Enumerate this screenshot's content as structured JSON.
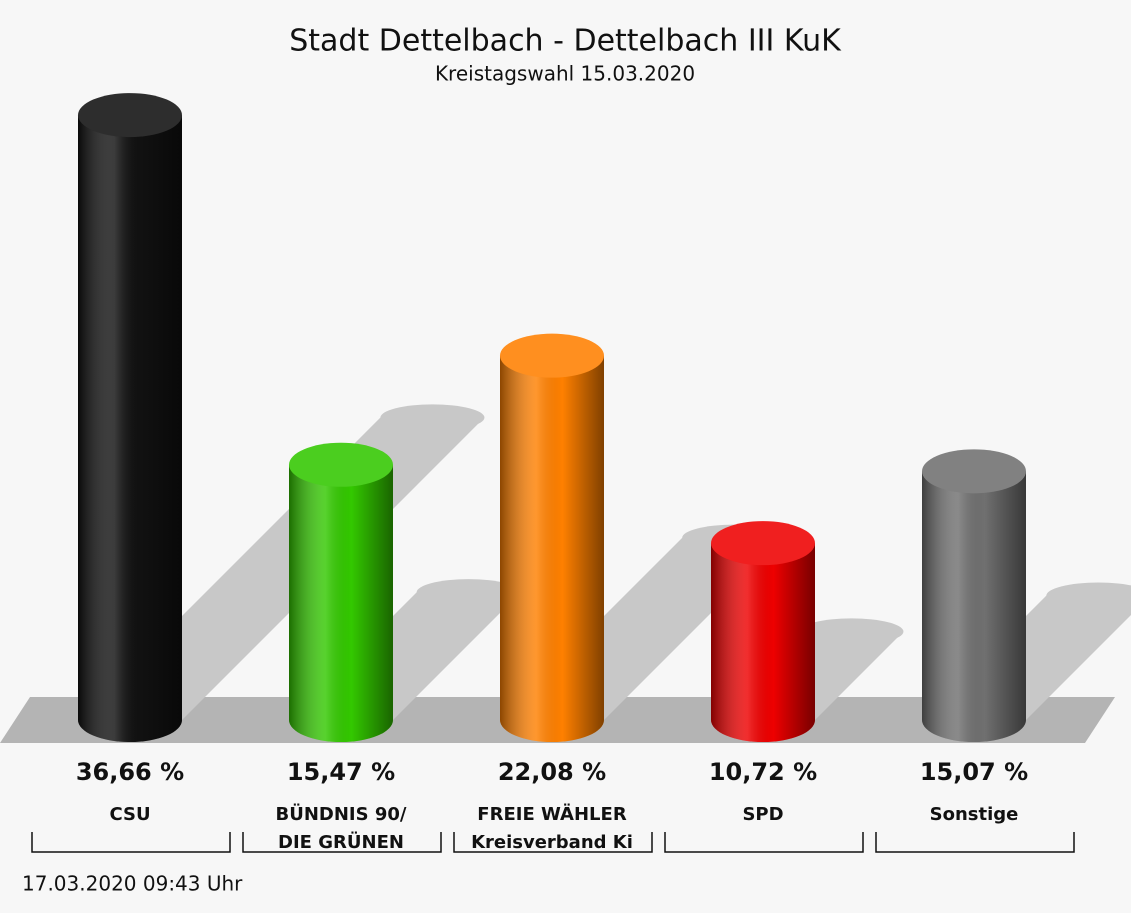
{
  "chart_data": {
    "type": "bar",
    "title": "Stadt Dettelbach - Dettelbach III KuK",
    "subtitle": "Kreistagswahl 15.03.2020",
    "categories": [
      [
        "CSU"
      ],
      [
        "BÜNDNIS 90/",
        "DIE GRÜNEN"
      ],
      [
        "FREIE WÄHLER",
        "Kreisverband Ki"
      ],
      [
        "SPD"
      ],
      [
        "Sonstige"
      ]
    ],
    "values": [
      36.66,
      15.47,
      22.08,
      10.72,
      15.07
    ],
    "value_labels": [
      "36,66 %",
      "15,47 %",
      "22,08 %",
      "10,72 %",
      "15,07 %"
    ],
    "colors": [
      "#111111",
      "#33c800",
      "#ff8000",
      "#ee0000",
      "#707070"
    ],
    "footer": "17.03.2020 09:43 Uhr"
  }
}
